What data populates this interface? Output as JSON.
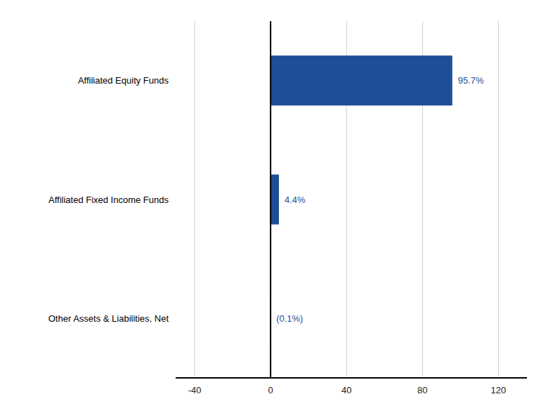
{
  "chart_data": {
    "type": "bar",
    "orientation": "horizontal",
    "categories": [
      "Affiliated Equity Funds",
      "Affiliated Fixed Income Funds",
      "Other Assets & Liabilities, Net"
    ],
    "values": [
      95.7,
      4.4,
      -0.1
    ],
    "value_labels": [
      "95.7%",
      "4.4%",
      "(0.1%)"
    ],
    "data_labels": true,
    "color": "#1F4E99",
    "xlim": [
      -50,
      135
    ],
    "xticks": [
      -40,
      0,
      40,
      80,
      120
    ],
    "grid": true
  }
}
